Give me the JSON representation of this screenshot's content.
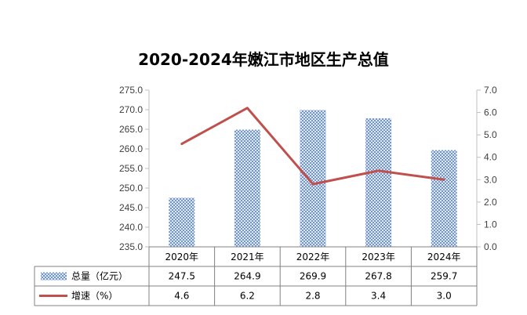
{
  "chart_data": {
    "type": "bar",
    "title": "2020-2024年嫩江市地区生产总值",
    "categories": [
      "2020年",
      "2021年",
      "2022年",
      "2023年",
      "2024年"
    ],
    "series": [
      {
        "name": "总量（亿元）",
        "type": "bar",
        "axis": "left",
        "values": [
          247.5,
          264.9,
          269.9,
          267.8,
          259.7
        ],
        "color": "#5B86C5",
        "pattern": "crosshatch"
      },
      {
        "name": "增速（%）",
        "type": "line",
        "axis": "right",
        "values": [
          4.6,
          6.2,
          2.8,
          3.4,
          3.0
        ],
        "color": "#C0504D"
      }
    ],
    "y_left": {
      "lim": [
        235.0,
        275.0
      ],
      "step": 5.0,
      "decimals": 1
    },
    "y_right": {
      "lim": [
        0.0,
        7.0
      ],
      "step": 1.0,
      "decimals": 1
    },
    "grid": false,
    "legend": "data-table"
  }
}
